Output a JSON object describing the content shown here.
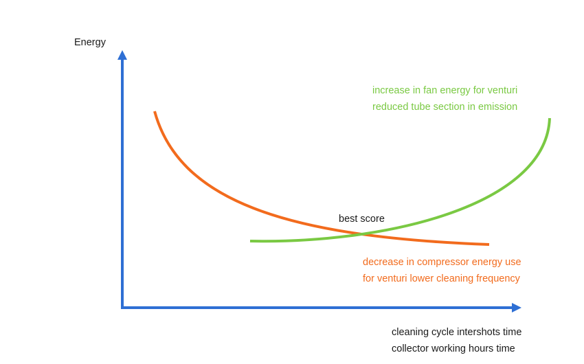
{
  "y_axis_label": "Energy",
  "x_axis_label_lines": [
    "cleaning cycle intershots  time",
    "collector working hours time"
  ],
  "curves": {
    "rising": {
      "color": "#7ac943",
      "label_lines": [
        "increase in fan energy for venturi",
        "reduced tube section in emission"
      ]
    },
    "falling": {
      "color": "#f26b1d",
      "label_lines": [
        "decrease in compressor energy use",
        "for venturi  lower cleaning frequency"
      ]
    }
  },
  "intersection_label": "best score",
  "axis_color": "#2e6fd4"
}
